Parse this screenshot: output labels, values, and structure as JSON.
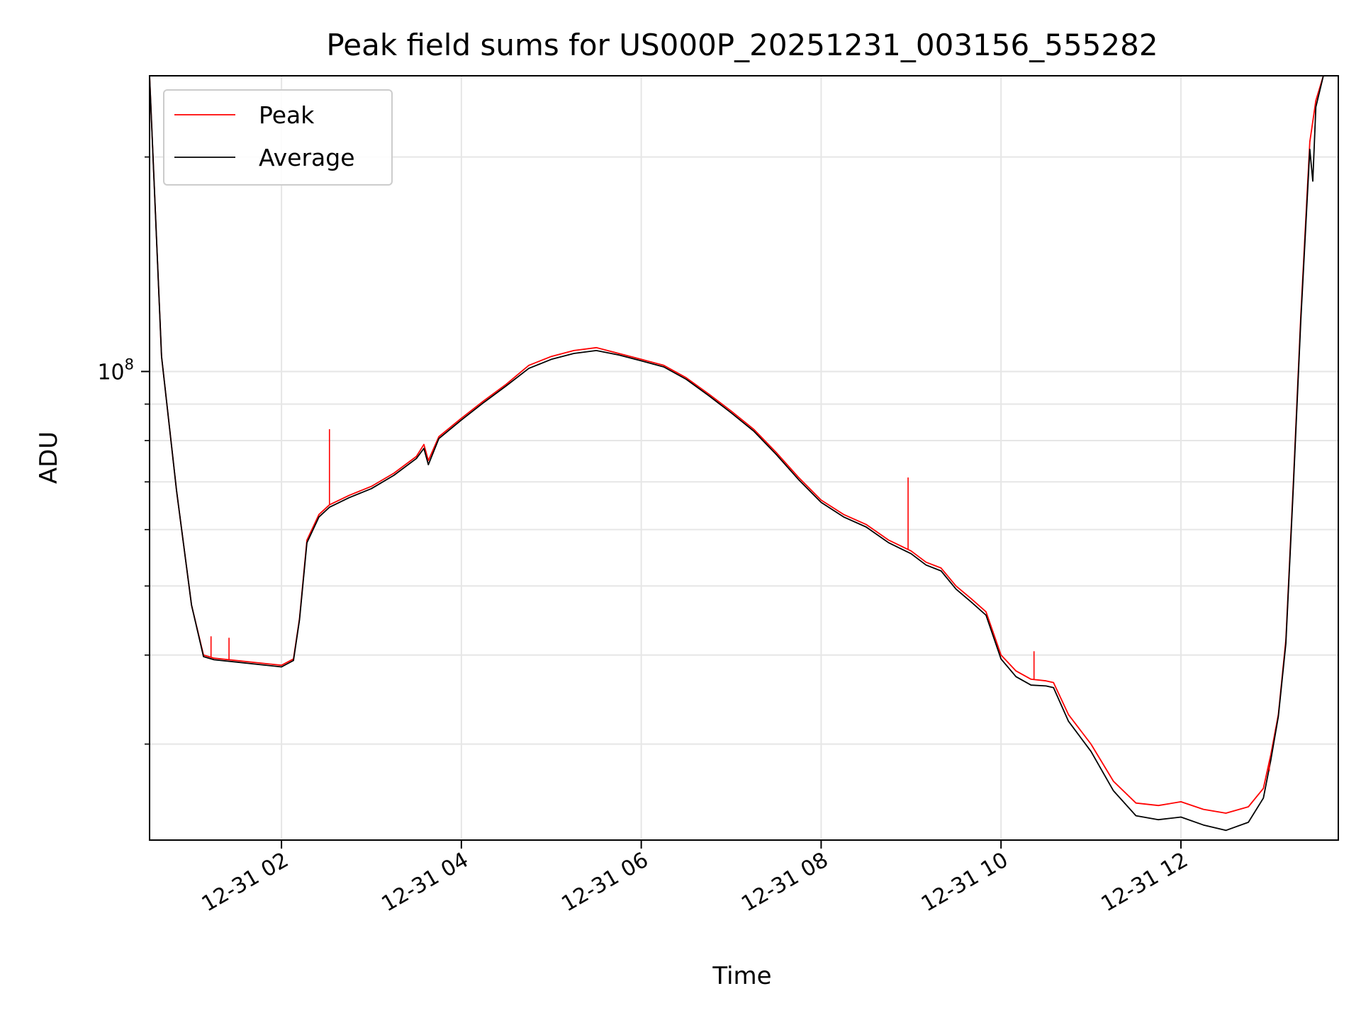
{
  "chart_data": {
    "type": "line",
    "title": "Peak field sums for US000P_20251231_003156_555282",
    "xlabel": "Time",
    "ylabel": "ADU",
    "yscale": "log",
    "xlim": [
      "2025-12-31 00:32",
      "2025-12-31 13:45"
    ],
    "ylim": [
      22000000,
      260000000
    ],
    "grid": true,
    "legend_position": "top-left",
    "x_ticks": [
      {
        "value": "2025-12-31 02:00",
        "label": "12-31 02"
      },
      {
        "value": "2025-12-31 04:00",
        "label": "12-31 04"
      },
      {
        "value": "2025-12-31 06:00",
        "label": "12-31 06"
      },
      {
        "value": "2025-12-31 08:00",
        "label": "12-31 08"
      },
      {
        "value": "2025-12-31 10:00",
        "label": "12-31 10"
      },
      {
        "value": "2025-12-31 12:00",
        "label": "12-31 12"
      }
    ],
    "y_ticks": [
      {
        "value": 100000000,
        "base": "10",
        "exponent": "8"
      }
    ],
    "y_minor_ticks": [
      30000000,
      40000000,
      50000000,
      60000000,
      70000000,
      80000000,
      90000000,
      200000000
    ],
    "series": [
      {
        "name": "Peak",
        "color": "#ff0000",
        "points": [
          [
            "2025-12-31 00:32",
            260000000
          ],
          [
            "2025-12-31 00:40",
            105000000
          ],
          [
            "2025-12-31 00:50",
            68000000
          ],
          [
            "2025-12-31 01:00",
            47000000
          ],
          [
            "2025-12-31 01:08",
            40000000
          ],
          [
            "2025-12-31 01:15",
            39600000
          ],
          [
            "2025-12-31 01:30",
            39300000
          ],
          [
            "2025-12-31 01:45",
            39000000
          ],
          [
            "2025-12-31 02:00",
            38700000
          ],
          [
            "2025-12-31 02:08",
            39500000
          ],
          [
            "2025-12-31 02:12",
            45000000
          ],
          [
            "2025-12-31 02:17",
            58000000
          ],
          [
            "2025-12-31 02:25",
            63000000
          ],
          [
            "2025-12-31 02:32",
            65000000
          ],
          [
            "2025-12-31 02:45",
            67000000
          ],
          [
            "2025-12-31 03:00",
            69000000
          ],
          [
            "2025-12-31 03:15",
            72000000
          ],
          [
            "2025-12-31 03:30",
            76000000
          ],
          [
            "2025-12-31 03:35",
            79000000
          ],
          [
            "2025-12-31 03:38",
            75000000
          ],
          [
            "2025-12-31 03:45",
            81000000
          ],
          [
            "2025-12-31 04:00",
            86000000
          ],
          [
            "2025-12-31 04:15",
            91000000
          ],
          [
            "2025-12-31 04:30",
            96000000
          ],
          [
            "2025-12-31 04:45",
            102000000
          ],
          [
            "2025-12-31 05:00",
            105000000
          ],
          [
            "2025-12-31 05:15",
            107000000
          ],
          [
            "2025-12-31 05:30",
            108000000
          ],
          [
            "2025-12-31 05:45",
            106000000
          ],
          [
            "2025-12-31 06:00",
            104000000
          ],
          [
            "2025-12-31 06:15",
            102000000
          ],
          [
            "2025-12-31 06:30",
            98000000
          ],
          [
            "2025-12-31 06:45",
            93000000
          ],
          [
            "2025-12-31 07:00",
            88000000
          ],
          [
            "2025-12-31 07:15",
            83000000
          ],
          [
            "2025-12-31 07:30",
            77000000
          ],
          [
            "2025-12-31 07:45",
            71000000
          ],
          [
            "2025-12-31 08:00",
            66000000
          ],
          [
            "2025-12-31 08:15",
            63000000
          ],
          [
            "2025-12-31 08:30",
            61000000
          ],
          [
            "2025-12-31 08:45",
            58000000
          ],
          [
            "2025-12-31 09:00",
            56000000
          ],
          [
            "2025-12-31 09:10",
            54000000
          ],
          [
            "2025-12-31 09:20",
            53000000
          ],
          [
            "2025-12-31 09:30",
            50000000
          ],
          [
            "2025-12-31 09:40",
            48000000
          ],
          [
            "2025-12-31 09:50",
            46000000
          ],
          [
            "2025-12-31 10:00",
            40000000
          ],
          [
            "2025-12-31 10:10",
            38000000
          ],
          [
            "2025-12-31 10:20",
            37000000
          ],
          [
            "2025-12-31 10:30",
            36800000
          ],
          [
            "2025-12-31 10:35",
            36600000
          ],
          [
            "2025-12-31 10:45",
            33000000
          ],
          [
            "2025-12-31 11:00",
            30000000
          ],
          [
            "2025-12-31 11:15",
            26600000
          ],
          [
            "2025-12-31 11:30",
            24800000
          ],
          [
            "2025-12-31 11:45",
            24600000
          ],
          [
            "2025-12-31 12:00",
            24900000
          ],
          [
            "2025-12-31 12:15",
            24300000
          ],
          [
            "2025-12-31 12:30",
            24000000
          ],
          [
            "2025-12-31 12:45",
            24500000
          ],
          [
            "2025-12-31 12:55",
            26000000
          ],
          [
            "2025-12-31 13:00",
            29000000
          ],
          [
            "2025-12-31 13:05",
            33000000
          ],
          [
            "2025-12-31 13:10",
            42000000
          ],
          [
            "2025-12-31 13:15",
            70000000
          ],
          [
            "2025-12-31 13:20",
            120000000
          ],
          [
            "2025-12-31 13:26",
            210000000
          ],
          [
            "2025-12-31 13:30",
            240000000
          ],
          [
            "2025-12-31 13:35",
            260000000
          ]
        ]
      },
      {
        "name": "Average",
        "color": "#000000",
        "points": [
          [
            "2025-12-31 00:32",
            260000000
          ],
          [
            "2025-12-31 00:40",
            105000000
          ],
          [
            "2025-12-31 00:50",
            68000000
          ],
          [
            "2025-12-31 01:00",
            47000000
          ],
          [
            "2025-12-31 01:08",
            39800000
          ],
          [
            "2025-12-31 01:15",
            39400000
          ],
          [
            "2025-12-31 01:30",
            39100000
          ],
          [
            "2025-12-31 01:45",
            38800000
          ],
          [
            "2025-12-31 02:00",
            38500000
          ],
          [
            "2025-12-31 02:08",
            39300000
          ],
          [
            "2025-12-31 02:12",
            44800000
          ],
          [
            "2025-12-31 02:17",
            57500000
          ],
          [
            "2025-12-31 02:25",
            62500000
          ],
          [
            "2025-12-31 02:32",
            64500000
          ],
          [
            "2025-12-31 02:45",
            66500000
          ],
          [
            "2025-12-31 03:00",
            68500000
          ],
          [
            "2025-12-31 03:15",
            71500000
          ],
          [
            "2025-12-31 03:30",
            75500000
          ],
          [
            "2025-12-31 03:35",
            78000000
          ],
          [
            "2025-12-31 03:38",
            74000000
          ],
          [
            "2025-12-31 03:45",
            80500000
          ],
          [
            "2025-12-31 04:00",
            85500000
          ],
          [
            "2025-12-31 04:15",
            90500000
          ],
          [
            "2025-12-31 04:30",
            95500000
          ],
          [
            "2025-12-31 04:45",
            101000000
          ],
          [
            "2025-12-31 05:00",
            104000000
          ],
          [
            "2025-12-31 05:15",
            106000000
          ],
          [
            "2025-12-31 05:30",
            107000000
          ],
          [
            "2025-12-31 05:45",
            105500000
          ],
          [
            "2025-12-31 06:00",
            103500000
          ],
          [
            "2025-12-31 06:15",
            101500000
          ],
          [
            "2025-12-31 06:30",
            97500000
          ],
          [
            "2025-12-31 06:45",
            92500000
          ],
          [
            "2025-12-31 07:00",
            87500000
          ],
          [
            "2025-12-31 07:15",
            82500000
          ],
          [
            "2025-12-31 07:30",
            76500000
          ],
          [
            "2025-12-31 07:45",
            70500000
          ],
          [
            "2025-12-31 08:00",
            65500000
          ],
          [
            "2025-12-31 08:15",
            62500000
          ],
          [
            "2025-12-31 08:30",
            60500000
          ],
          [
            "2025-12-31 08:45",
            57500000
          ],
          [
            "2025-12-31 09:00",
            55500000
          ],
          [
            "2025-12-31 09:10",
            53500000
          ],
          [
            "2025-12-31 09:20",
            52500000
          ],
          [
            "2025-12-31 09:30",
            49500000
          ],
          [
            "2025-12-31 09:40",
            47500000
          ],
          [
            "2025-12-31 09:50",
            45500000
          ],
          [
            "2025-12-31 10:00",
            39500000
          ],
          [
            "2025-12-31 10:10",
            37300000
          ],
          [
            "2025-12-31 10:20",
            36300000
          ],
          [
            "2025-12-31 10:30",
            36200000
          ],
          [
            "2025-12-31 10:35",
            36000000
          ],
          [
            "2025-12-31 10:45",
            32300000
          ],
          [
            "2025-12-31 11:00",
            29300000
          ],
          [
            "2025-12-31 11:15",
            25800000
          ],
          [
            "2025-12-31 11:30",
            23800000
          ],
          [
            "2025-12-31 11:45",
            23500000
          ],
          [
            "2025-12-31 12:00",
            23700000
          ],
          [
            "2025-12-31 12:15",
            23100000
          ],
          [
            "2025-12-31 12:30",
            22700000
          ],
          [
            "2025-12-31 12:45",
            23300000
          ],
          [
            "2025-12-31 12:55",
            25200000
          ],
          [
            "2025-12-31 13:00",
            28500000
          ],
          [
            "2025-12-31 13:05",
            32800000
          ],
          [
            "2025-12-31 13:10",
            41500000
          ],
          [
            "2025-12-31 13:15",
            69000000
          ],
          [
            "2025-12-31 13:20",
            118000000
          ],
          [
            "2025-12-31 13:26",
            205000000
          ],
          [
            "2025-12-31 13:28",
            185000000
          ],
          [
            "2025-12-31 13:30",
            235000000
          ],
          [
            "2025-12-31 13:35",
            260000000
          ]
        ]
      }
    ],
    "annotations_spikes": [
      {
        "series": "Peak",
        "x": "2025-12-31 02:32",
        "y": 83000000
      },
      {
        "series": "Peak",
        "x": "2025-12-31 08:58",
        "y": 71000000
      },
      {
        "series": "Peak",
        "x": "2025-12-31 10:22",
        "y": 40500000
      },
      {
        "series": "Peak",
        "x": "2025-12-31 01:13",
        "y": 42500000
      },
      {
        "series": "Peak",
        "x": "2025-12-31 01:25",
        "y": 42300000
      },
      {
        "series": "Peak",
        "x": "2025-12-31 12:59",
        "y": 27500000
      }
    ]
  }
}
